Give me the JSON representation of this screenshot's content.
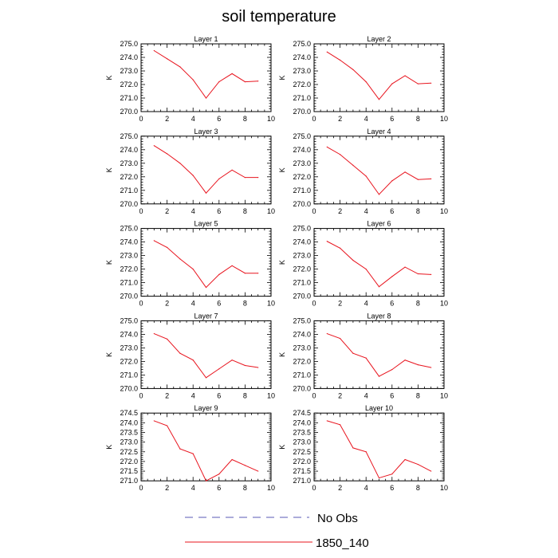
{
  "chart_data": {
    "type": "line",
    "title": "soil temperature",
    "xlim": [
      0,
      10
    ],
    "x_ticks": [
      0,
      2,
      4,
      6,
      8,
      10
    ],
    "grid": false,
    "legend_placement": "bottom-center",
    "legend": [
      {
        "label": "No Obs",
        "style": "dashed",
        "color": "#5a5ab4"
      },
      {
        "label": "1850_140",
        "style": "solid",
        "color": "#e8141e"
      }
    ],
    "panels": [
      {
        "title": "Layer 1",
        "ylabel": "K",
        "ylim": [
          270.0,
          275.0
        ],
        "y_ticks": [
          "270.0",
          "271.0",
          "272.0",
          "273.0",
          "274.0",
          "275.0"
        ],
        "x": [
          1,
          2,
          3,
          4,
          5,
          6,
          7,
          8,
          9
        ],
        "values": [
          274.5,
          273.9,
          273.3,
          272.35,
          271.0,
          272.2,
          272.8,
          272.2,
          272.25
        ]
      },
      {
        "title": "Layer 2",
        "ylabel": "K",
        "ylim": [
          270.0,
          275.0
        ],
        "y_ticks": [
          "270.0",
          "271.0",
          "272.0",
          "273.0",
          "274.0",
          "275.0"
        ],
        "x": [
          1,
          2,
          3,
          4,
          5,
          6,
          7,
          8,
          9
        ],
        "values": [
          274.4,
          273.8,
          273.1,
          272.2,
          270.9,
          272.05,
          272.65,
          272.05,
          272.1
        ]
      },
      {
        "title": "Layer 3",
        "ylabel": "K",
        "ylim": [
          270.0,
          275.0
        ],
        "y_ticks": [
          "270.0",
          "271.0",
          "272.0",
          "273.0",
          "274.0",
          "275.0"
        ],
        "x": [
          1,
          2,
          3,
          4,
          5,
          6,
          7,
          8,
          9
        ],
        "values": [
          274.3,
          273.7,
          273.0,
          272.1,
          270.8,
          271.85,
          272.5,
          271.95,
          271.95
        ]
      },
      {
        "title": "Layer 4",
        "ylabel": "K",
        "ylim": [
          270.0,
          275.0
        ],
        "y_ticks": [
          "270.0",
          "271.0",
          "272.0",
          "273.0",
          "274.0",
          "275.0"
        ],
        "x": [
          1,
          2,
          3,
          4,
          5,
          6,
          7,
          8,
          9
        ],
        "values": [
          274.2,
          273.65,
          272.85,
          272.05,
          270.7,
          271.7,
          272.35,
          271.8,
          271.85
        ]
      },
      {
        "title": "Layer 5",
        "ylabel": "K",
        "ylim": [
          270.0,
          275.0
        ],
        "y_ticks": [
          "270.0",
          "271.0",
          "272.0",
          "273.0",
          "274.0",
          "275.0"
        ],
        "x": [
          1,
          2,
          3,
          4,
          5,
          6,
          7,
          8,
          9
        ],
        "values": [
          274.1,
          273.6,
          272.75,
          272.0,
          270.65,
          271.6,
          272.25,
          271.7,
          271.7
        ]
      },
      {
        "title": "Layer 6",
        "ylabel": "K",
        "ylim": [
          270.0,
          275.0
        ],
        "y_ticks": [
          "270.0",
          "271.0",
          "272.0",
          "273.0",
          "274.0",
          "275.0"
        ],
        "x": [
          1,
          2,
          3,
          4,
          5,
          6,
          7,
          8,
          9
        ],
        "values": [
          274.05,
          273.55,
          272.65,
          272.0,
          270.7,
          271.45,
          272.15,
          271.65,
          271.6
        ]
      },
      {
        "title": "Layer 7",
        "ylabel": "K",
        "ylim": [
          270.0,
          275.0
        ],
        "y_ticks": [
          "270.0",
          "271.0",
          "272.0",
          "273.0",
          "274.0",
          "275.0"
        ],
        "x": [
          1,
          2,
          3,
          4,
          5,
          6,
          7,
          8,
          9
        ],
        "values": [
          274.05,
          273.65,
          272.6,
          272.1,
          270.8,
          271.45,
          272.1,
          271.7,
          271.55
        ]
      },
      {
        "title": "Layer 8",
        "ylabel": "K",
        "ylim": [
          270.0,
          275.0
        ],
        "y_ticks": [
          "270.0",
          "271.0",
          "272.0",
          "273.0",
          "274.0",
          "275.0"
        ],
        "x": [
          1,
          2,
          3,
          4,
          5,
          6,
          7,
          8,
          9
        ],
        "values": [
          274.05,
          273.7,
          272.6,
          272.25,
          270.9,
          271.4,
          272.1,
          271.75,
          271.55
        ]
      },
      {
        "title": "Layer 9",
        "ylabel": "K",
        "ylim": [
          271.0,
          274.5
        ],
        "y_ticks": [
          "271.0",
          "271.5",
          "272.0",
          "272.5",
          "273.0",
          "273.5",
          "274.0",
          "274.5"
        ],
        "x": [
          1,
          2,
          3,
          4,
          5,
          6,
          7,
          8,
          9
        ],
        "values": [
          274.1,
          273.85,
          272.65,
          272.4,
          271.0,
          271.35,
          272.1,
          271.8,
          271.5
        ]
      },
      {
        "title": "Layer 10",
        "ylabel": "K",
        "ylim": [
          271.0,
          274.5
        ],
        "y_ticks": [
          "271.0",
          "271.5",
          "272.0",
          "272.5",
          "273.0",
          "273.5",
          "274.0",
          "274.5"
        ],
        "x": [
          1,
          2,
          3,
          4,
          5,
          6,
          7,
          8,
          9
        ],
        "values": [
          274.1,
          273.9,
          272.7,
          272.5,
          271.15,
          271.35,
          272.1,
          271.85,
          271.5
        ]
      }
    ]
  }
}
